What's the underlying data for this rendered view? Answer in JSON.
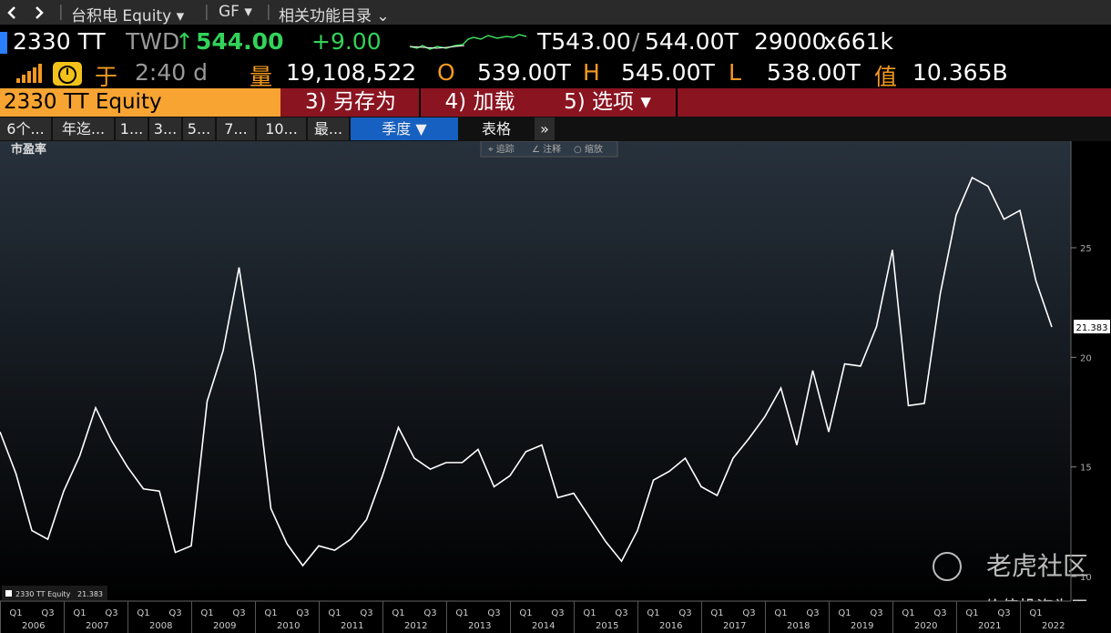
{
  "nav": {
    "items": [
      "台积电 Equity ▾",
      "GF ▾",
      "相关功能目录 ⌄"
    ]
  },
  "quote": {
    "ticker": "2330 TT",
    "currency": "TWD",
    "arrow": "↑",
    "last": "544.00",
    "change": "+9.00",
    "bid": "T543.00",
    "slash": "/",
    "ask": "544.00T",
    "size": "29000",
    "size_x": "x661k"
  },
  "stats": {
    "exchange": "于",
    "time": "2:40 d",
    "volume_label": "量",
    "volume": "19,108,522",
    "open_label": "O",
    "open": "539.00T",
    "high_label": "H",
    "high": "545.00T",
    "low_label": "L",
    "low": "538.00T",
    "value_label": "值",
    "value": "10.365B"
  },
  "toolbar": {
    "security": "2330 TT Equity",
    "buttons": [
      "3) 另存为",
      "4) 加载",
      "5) 选项 ▾"
    ]
  },
  "tabs": [
    "6个...",
    "年迄...",
    "1...",
    "3...",
    "5...",
    "7...",
    "10...",
    "最...",
    "季度 ▼",
    "表格",
    "»"
  ],
  "chart_controls": [
    "⌖ 追踪",
    "∠ 注释",
    "○ 缩放"
  ],
  "watermark": "老虎社区",
  "credit": "@价值投资为王",
  "chart_data": {
    "type": "line",
    "title": "市盈率",
    "categories": [
      null,
      "Q1",
      null,
      "Q3",
      null,
      "Q1",
      null,
      "Q3",
      null,
      "Q1",
      null,
      "Q3",
      null,
      "Q1",
      null,
      "Q3",
      null,
      "Q1",
      null,
      "Q3",
      null,
      "Q1",
      null,
      "Q3",
      null,
      "Q1",
      null,
      "Q3",
      null,
      "Q1",
      null,
      "Q3",
      null,
      "Q1",
      null,
      "Q3",
      null,
      "Q1",
      null,
      "Q3",
      null,
      "Q1",
      null,
      "Q3",
      null,
      "Q1",
      null,
      "Q3",
      null,
      "Q1",
      null,
      "Q3",
      null,
      "Q1",
      null,
      "Q3",
      null,
      "Q1",
      null,
      "Q3",
      null,
      "Q1",
      null,
      "Q3",
      null,
      "Q1",
      null
    ],
    "years": [
      "2006",
      "2007",
      "2008",
      "2009",
      "2010",
      "2011",
      "2012",
      "2013",
      "2014",
      "2015",
      "2016",
      "2017",
      "2018",
      "2019",
      "2020",
      "2021",
      "2022"
    ],
    "series": [
      {
        "name": "2330 TT Equity",
        "color": "#ffffff",
        "values": [
          16.6,
          14.7,
          12.1,
          11.7,
          13.9,
          15.5,
          17.7,
          16.2,
          15.0,
          14.0,
          13.9,
          11.1,
          11.4,
          18.0,
          20.3,
          24.1,
          19.3,
          13.1,
          11.5,
          10.5,
          11.4,
          11.2,
          11.7,
          12.6,
          14.6,
          16.8,
          15.4,
          14.9,
          15.2,
          15.2,
          15.8,
          14.1,
          14.6,
          15.7,
          16.0,
          13.6,
          13.8,
          12.7,
          11.6,
          10.7,
          12.1,
          14.4,
          14.8,
          15.4,
          14.1,
          13.7,
          15.4,
          16.3,
          17.3,
          18.6,
          16.0,
          19.4,
          16.6,
          19.7,
          19.6,
          21.4,
          24.9,
          17.8,
          17.9,
          22.9,
          26.5,
          28.2,
          27.8,
          26.3,
          26.7,
          23.5,
          21.383
        ]
      }
    ],
    "ylim": [
      8.88,
      29.86
    ],
    "yticks": [
      10,
      15,
      20,
      25
    ]
  }
}
